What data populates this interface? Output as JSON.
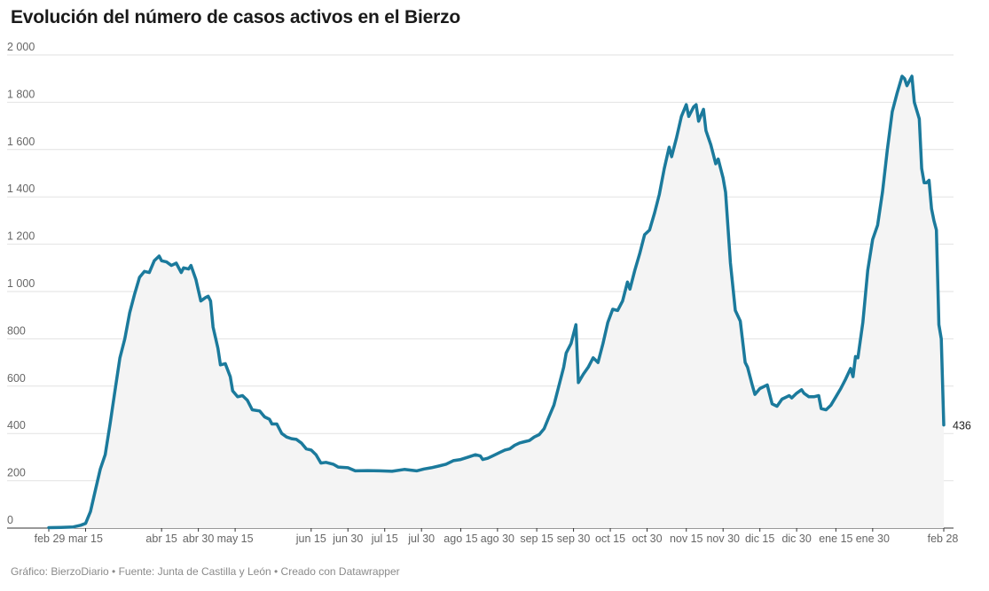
{
  "chart_data": {
    "type": "area",
    "title": "Evolución del número de casos activos en el Bierzo",
    "ylim": [
      0,
      2000
    ],
    "y_ticks": [
      0,
      200,
      400,
      600,
      800,
      1000,
      1200,
      1400,
      1600,
      1800,
      2000
    ],
    "y_tick_labels": [
      "0",
      "200",
      "400",
      "600",
      "800",
      "1 000",
      "1 200",
      "1 400",
      "1 600",
      "1 800",
      "2 000"
    ],
    "x_ticks": [
      "feb 29",
      "mar 15",
      "abr 15",
      "abr 30",
      "may 15",
      "jun 15",
      "jun 30",
      "jul 15",
      "jul 30",
      "ago 15",
      "ago 30",
      "sep 15",
      "sep 30",
      "oct 15",
      "oct 30",
      "nov 15",
      "nov 30",
      "dic 15",
      "dic 30",
      "ene 15",
      "ene 30",
      "feb 28"
    ],
    "x_tick_dates": [
      "2020-02-29",
      "2020-03-15",
      "2020-04-15",
      "2020-04-30",
      "2020-05-15",
      "2020-06-15",
      "2020-06-30",
      "2020-07-15",
      "2020-07-30",
      "2020-08-15",
      "2020-08-30",
      "2020-09-15",
      "2020-09-30",
      "2020-10-15",
      "2020-10-30",
      "2020-11-15",
      "2020-11-30",
      "2020-12-15",
      "2020-12-30",
      "2021-01-15",
      "2021-01-30",
      "2021-02-28"
    ],
    "xlim": [
      "2020-02-29",
      "2021-02-28"
    ],
    "series": [
      {
        "color": "#1b7a9c",
        "fill": "#f4f4f4",
        "end_label": "436",
        "points": [
          [
            "2020-02-29",
            2
          ],
          [
            "2020-03-05",
            3
          ],
          [
            "2020-03-10",
            5
          ],
          [
            "2020-03-13",
            12
          ],
          [
            "2020-03-15",
            20
          ],
          [
            "2020-03-17",
            70
          ],
          [
            "2020-03-19",
            160
          ],
          [
            "2020-03-21",
            250
          ],
          [
            "2020-03-23",
            310
          ],
          [
            "2020-03-25",
            440
          ],
          [
            "2020-03-27",
            580
          ],
          [
            "2020-03-29",
            720
          ],
          [
            "2020-03-31",
            800
          ],
          [
            "2020-04-02",
            910
          ],
          [
            "2020-04-04",
            990
          ],
          [
            "2020-04-06",
            1060
          ],
          [
            "2020-04-08",
            1085
          ],
          [
            "2020-04-10",
            1080
          ],
          [
            "2020-04-12",
            1130
          ],
          [
            "2020-04-14",
            1150
          ],
          [
            "2020-04-15",
            1130
          ],
          [
            "2020-04-17",
            1125
          ],
          [
            "2020-04-19",
            1110
          ],
          [
            "2020-04-21",
            1120
          ],
          [
            "2020-04-23",
            1080
          ],
          [
            "2020-04-24",
            1100
          ],
          [
            "2020-04-26",
            1095
          ],
          [
            "2020-04-27",
            1110
          ],
          [
            "2020-04-29",
            1050
          ],
          [
            "2020-05-01",
            960
          ],
          [
            "2020-05-03",
            975
          ],
          [
            "2020-05-04",
            980
          ],
          [
            "2020-05-05",
            960
          ],
          [
            "2020-05-06",
            850
          ],
          [
            "2020-05-08",
            760
          ],
          [
            "2020-05-09",
            690
          ],
          [
            "2020-05-11",
            695
          ],
          [
            "2020-05-13",
            640
          ],
          [
            "2020-05-14",
            580
          ],
          [
            "2020-05-16",
            555
          ],
          [
            "2020-05-18",
            560
          ],
          [
            "2020-05-20",
            540
          ],
          [
            "2020-05-22",
            500
          ],
          [
            "2020-05-25",
            495
          ],
          [
            "2020-05-27",
            470
          ],
          [
            "2020-05-29",
            460
          ],
          [
            "2020-05-30",
            440
          ],
          [
            "2020-06-01",
            440
          ],
          [
            "2020-06-03",
            400
          ],
          [
            "2020-06-05",
            385
          ],
          [
            "2020-06-07",
            378
          ],
          [
            "2020-06-09",
            375
          ],
          [
            "2020-06-11",
            360
          ],
          [
            "2020-06-13",
            335
          ],
          [
            "2020-06-15",
            330
          ],
          [
            "2020-06-17",
            310
          ],
          [
            "2020-06-19",
            275
          ],
          [
            "2020-06-21",
            278
          ],
          [
            "2020-06-24",
            270
          ],
          [
            "2020-06-26",
            258
          ],
          [
            "2020-06-30",
            255
          ],
          [
            "2020-07-03",
            242
          ],
          [
            "2020-07-08",
            243
          ],
          [
            "2020-07-13",
            242
          ],
          [
            "2020-07-18",
            240
          ],
          [
            "2020-07-23",
            248
          ],
          [
            "2020-07-28",
            242
          ],
          [
            "2020-07-31",
            250
          ],
          [
            "2020-08-03",
            255
          ],
          [
            "2020-08-06",
            262
          ],
          [
            "2020-08-09",
            270
          ],
          [
            "2020-08-12",
            285
          ],
          [
            "2020-08-15",
            290
          ],
          [
            "2020-08-18",
            300
          ],
          [
            "2020-08-21",
            310
          ],
          [
            "2020-08-23",
            305
          ],
          [
            "2020-08-24",
            290
          ],
          [
            "2020-08-26",
            295
          ],
          [
            "2020-08-28",
            305
          ],
          [
            "2020-08-31",
            320
          ],
          [
            "2020-09-02",
            330
          ],
          [
            "2020-09-04",
            335
          ],
          [
            "2020-09-06",
            350
          ],
          [
            "2020-09-08",
            360
          ],
          [
            "2020-09-10",
            365
          ],
          [
            "2020-09-12",
            370
          ],
          [
            "2020-09-14",
            385
          ],
          [
            "2020-09-16",
            395
          ],
          [
            "2020-09-18",
            420
          ],
          [
            "2020-09-20",
            470
          ],
          [
            "2020-09-22",
            520
          ],
          [
            "2020-09-24",
            600
          ],
          [
            "2020-09-26",
            680
          ],
          [
            "2020-09-27",
            740
          ],
          [
            "2020-09-29",
            780
          ],
          [
            "2020-10-01",
            860
          ],
          [
            "2020-10-02",
            615
          ],
          [
            "2020-10-04",
            650
          ],
          [
            "2020-10-06",
            680
          ],
          [
            "2020-10-08",
            720
          ],
          [
            "2020-10-10",
            700
          ],
          [
            "2020-10-12",
            780
          ],
          [
            "2020-10-14",
            870
          ],
          [
            "2020-10-16",
            925
          ],
          [
            "2020-10-18",
            920
          ],
          [
            "2020-10-20",
            960
          ],
          [
            "2020-10-22",
            1040
          ],
          [
            "2020-10-23",
            1010
          ],
          [
            "2020-10-25",
            1090
          ],
          [
            "2020-10-27",
            1160
          ],
          [
            "2020-10-29",
            1240
          ],
          [
            "2020-10-31",
            1260
          ],
          [
            "2020-11-02",
            1330
          ],
          [
            "2020-11-04",
            1410
          ],
          [
            "2020-11-06",
            1520
          ],
          [
            "2020-11-08",
            1610
          ],
          [
            "2020-11-09",
            1570
          ],
          [
            "2020-11-11",
            1650
          ],
          [
            "2020-11-13",
            1740
          ],
          [
            "2020-11-15",
            1790
          ],
          [
            "2020-11-16",
            1740
          ],
          [
            "2020-11-18",
            1780
          ],
          [
            "2020-11-19",
            1790
          ],
          [
            "2020-11-20",
            1720
          ],
          [
            "2020-11-22",
            1770
          ],
          [
            "2020-11-23",
            1680
          ],
          [
            "2020-11-25",
            1620
          ],
          [
            "2020-11-27",
            1540
          ],
          [
            "2020-11-28",
            1560
          ],
          [
            "2020-11-30",
            1480
          ],
          [
            "2020-12-01",
            1420
          ],
          [
            "2020-12-03",
            1120
          ],
          [
            "2020-12-05",
            920
          ],
          [
            "2020-12-07",
            875
          ],
          [
            "2020-12-09",
            700
          ],
          [
            "2020-12-10",
            680
          ],
          [
            "2020-12-12",
            600
          ],
          [
            "2020-12-13",
            565
          ],
          [
            "2020-12-15",
            590
          ],
          [
            "2020-12-17",
            600
          ],
          [
            "2020-12-18",
            605
          ],
          [
            "2020-12-20",
            525
          ],
          [
            "2020-12-22",
            515
          ],
          [
            "2020-12-24",
            545
          ],
          [
            "2020-12-26",
            555
          ],
          [
            "2020-12-27",
            560
          ],
          [
            "2020-12-28",
            550
          ],
          [
            "2020-12-30",
            570
          ],
          [
            "2021-01-01",
            585
          ],
          [
            "2021-01-02",
            570
          ],
          [
            "2021-01-04",
            555
          ],
          [
            "2021-01-06",
            555
          ],
          [
            "2021-01-08",
            560
          ],
          [
            "2021-01-09",
            505
          ],
          [
            "2021-01-11",
            500
          ],
          [
            "2021-01-13",
            520
          ],
          [
            "2021-01-15",
            555
          ],
          [
            "2021-01-17",
            590
          ],
          [
            "2021-01-19",
            630
          ],
          [
            "2021-01-21",
            675
          ],
          [
            "2021-01-22",
            640
          ],
          [
            "2021-01-23",
            725
          ],
          [
            "2021-01-24",
            720
          ],
          [
            "2021-01-26",
            870
          ],
          [
            "2021-01-28",
            1090
          ],
          [
            "2021-01-30",
            1220
          ],
          [
            "2021-02-01",
            1280
          ],
          [
            "2021-02-03",
            1420
          ],
          [
            "2021-02-05",
            1600
          ],
          [
            "2021-02-07",
            1760
          ],
          [
            "2021-02-09",
            1840
          ],
          [
            "2021-02-11",
            1910
          ],
          [
            "2021-02-12",
            1900
          ],
          [
            "2021-02-13",
            1870
          ],
          [
            "2021-02-15",
            1910
          ],
          [
            "2021-02-16",
            1800
          ],
          [
            "2021-02-18",
            1730
          ],
          [
            "2021-02-19",
            1520
          ],
          [
            "2021-02-20",
            1460
          ],
          [
            "2021-02-21",
            1460
          ],
          [
            "2021-02-22",
            1470
          ],
          [
            "2021-02-23",
            1350
          ],
          [
            "2021-02-24",
            1300
          ],
          [
            "2021-02-25",
            1260
          ],
          [
            "2021-02-26",
            860
          ],
          [
            "2021-02-27",
            800
          ],
          [
            "2021-02-28",
            436
          ]
        ]
      }
    ],
    "grid": true,
    "source_line": "Gráfico: BierzoDiario • Fuente: Junta de Castilla y León • Creado con Datawrapper"
  }
}
